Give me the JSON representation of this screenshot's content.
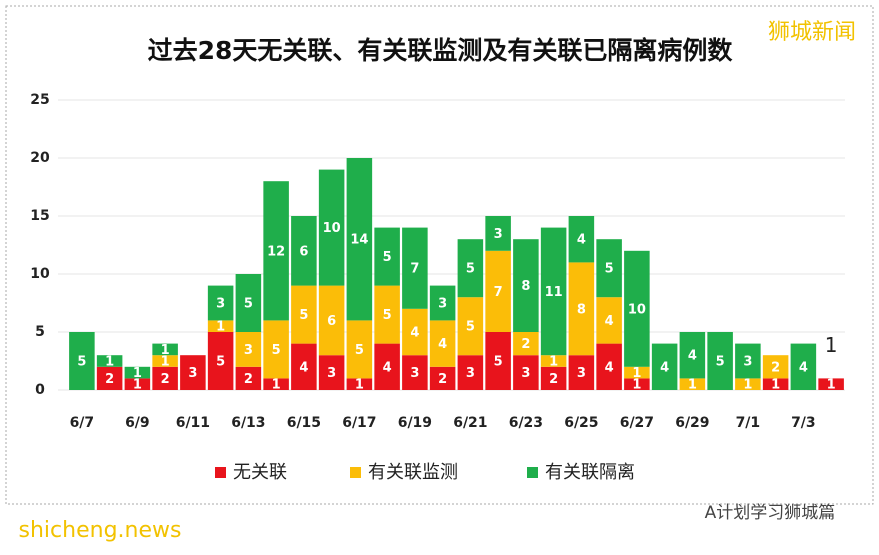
{
  "chart_data": {
    "type": "stacked_bar",
    "title": "过去28天无关联、有关联监测及有关联已隔离病例数",
    "categories": [
      "6/7",
      null,
      "6/9",
      null,
      "6/11",
      null,
      "6/13",
      null,
      "6/15",
      null,
      "6/17",
      null,
      "6/19",
      null,
      "6/21",
      null,
      "6/23",
      null,
      "6/25",
      null,
      "6/27",
      null,
      "6/29",
      null,
      "7/1",
      null,
      "7/3",
      null
    ],
    "series": [
      {
        "name": "无关联",
        "color": "#e8141c",
        "values": [
          0,
          2,
          1,
          2,
          3,
          5,
          2,
          1,
          4,
          3,
          1,
          4,
          3,
          2,
          3,
          5,
          3,
          2,
          3,
          4,
          1,
          0,
          0,
          0,
          0,
          1,
          0,
          1
        ]
      },
      {
        "name": "有关联监测",
        "color": "#fbbd08",
        "values": [
          0,
          0,
          0,
          1,
          0,
          1,
          3,
          5,
          5,
          6,
          5,
          5,
          4,
          4,
          5,
          7,
          2,
          1,
          8,
          4,
          1,
          0,
          1,
          0,
          1,
          2,
          0,
          0
        ]
      },
      {
        "name": "有关联隔离",
        "color": "#1fae4b",
        "values": [
          5,
          1,
          1,
          1,
          0,
          3,
          5,
          12,
          6,
          10,
          14,
          5,
          7,
          3,
          5,
          3,
          8,
          11,
          4,
          5,
          10,
          4,
          4,
          5,
          3,
          0,
          4,
          0
        ]
      }
    ],
    "annotation": "1",
    "ylim": [
      0,
      25
    ],
    "yticks": [
      0,
      5,
      10,
      15,
      20,
      25
    ],
    "grid": true,
    "legend": "bottom",
    "watermarks": [
      "狮城新闻",
      "A计划学习狮城篇",
      "shicheng.news"
    ]
  }
}
